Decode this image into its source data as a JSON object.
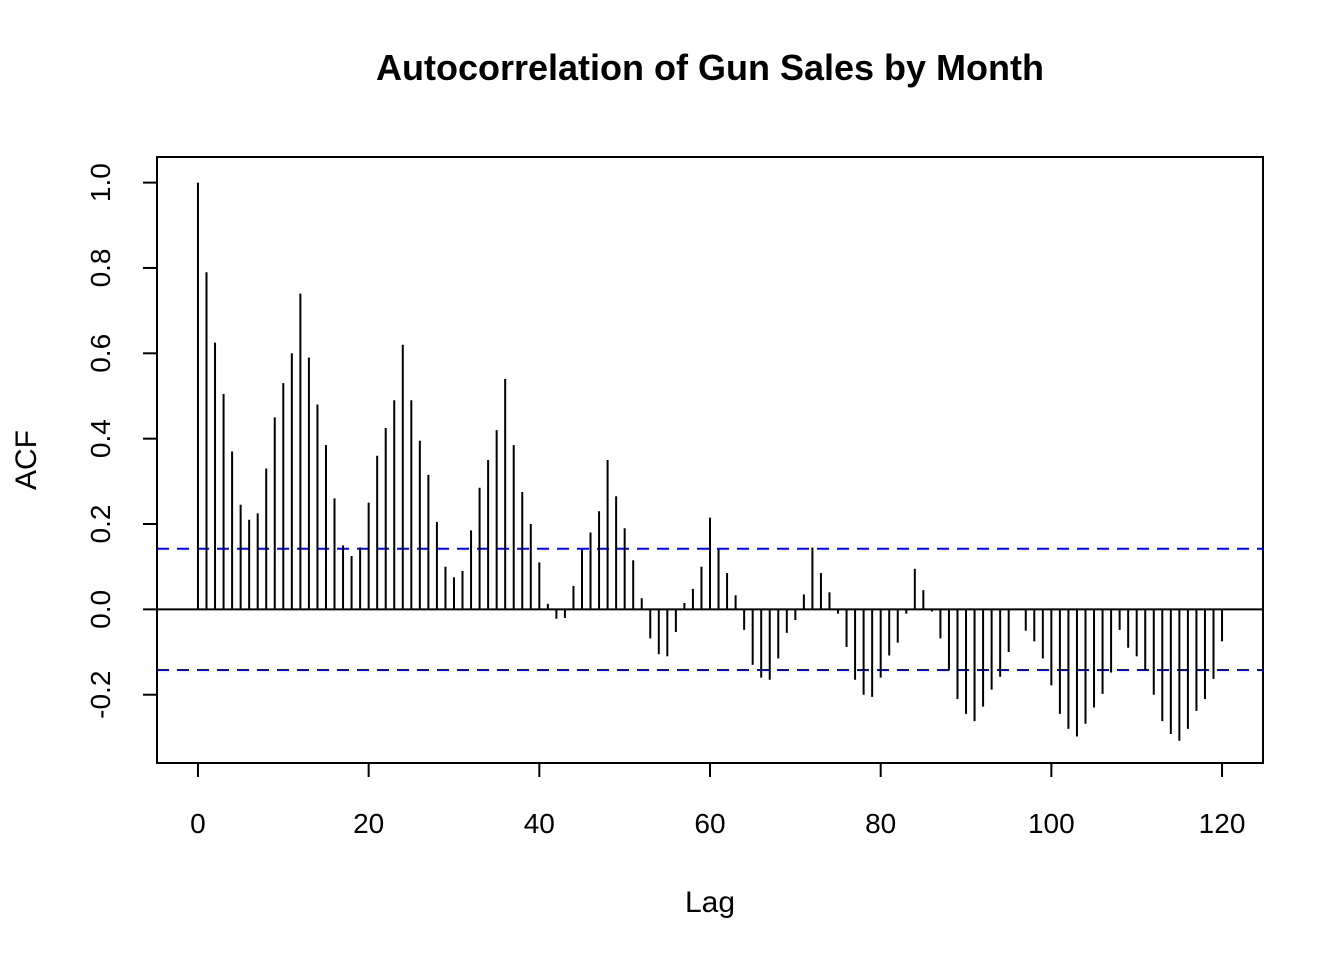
{
  "chart_data": {
    "type": "bar",
    "title": "Autocorrelation of Gun Sales by Month",
    "xlabel": "Lag",
    "ylabel": "ACF",
    "xlim": [
      -4.8,
      124.8
    ],
    "ylim": [
      -0.36,
      1.06
    ],
    "x_ticks": [
      0,
      20,
      40,
      60,
      80,
      100,
      120
    ],
    "y_ticks": [
      -0.2,
      0.0,
      0.2,
      0.4,
      0.6,
      0.8,
      1.0
    ],
    "x_tick_labels": [
      "0",
      "20",
      "40",
      "60",
      "80",
      "100",
      "120"
    ],
    "y_tick_labels": [
      "-0.2",
      "0.0",
      "0.2",
      "0.4",
      "0.6",
      "0.8",
      "1.0"
    ],
    "confidence_bound": 0.142,
    "grid": false,
    "colors": {
      "bars": "#000000",
      "confidence_lines": "#0000ff",
      "zero_line": "#000000"
    },
    "lags": [
      0,
      1,
      2,
      3,
      4,
      5,
      6,
      7,
      8,
      9,
      10,
      11,
      12,
      13,
      14,
      15,
      16,
      17,
      18,
      19,
      20,
      21,
      22,
      23,
      24,
      25,
      26,
      27,
      28,
      29,
      30,
      31,
      32,
      33,
      34,
      35,
      36,
      37,
      38,
      39,
      40,
      41,
      42,
      43,
      44,
      45,
      46,
      47,
      48,
      49,
      50,
      51,
      52,
      53,
      54,
      55,
      56,
      57,
      58,
      59,
      60,
      61,
      62,
      63,
      64,
      65,
      66,
      67,
      68,
      69,
      70,
      71,
      72,
      73,
      74,
      75,
      76,
      77,
      78,
      79,
      80,
      81,
      82,
      83,
      84,
      85,
      86,
      87,
      88,
      89,
      90,
      91,
      92,
      93,
      94,
      95,
      96,
      97,
      98,
      99,
      100,
      101,
      102,
      103,
      104,
      105,
      106,
      107,
      108,
      109,
      110,
      111,
      112,
      113,
      114,
      115,
      116,
      117,
      118,
      119,
      120
    ],
    "values": [
      1.0,
      0.79,
      0.625,
      0.505,
      0.37,
      0.245,
      0.21,
      0.225,
      0.33,
      0.45,
      0.53,
      0.6,
      0.74,
      0.59,
      0.48,
      0.385,
      0.26,
      0.15,
      0.125,
      0.145,
      0.25,
      0.36,
      0.425,
      0.49,
      0.62,
      0.49,
      0.395,
      0.315,
      0.205,
      0.1,
      0.075,
      0.09,
      0.185,
      0.285,
      0.35,
      0.42,
      0.54,
      0.385,
      0.275,
      0.2,
      0.11,
      0.013,
      -0.022,
      -0.02,
      0.055,
      0.14,
      0.18,
      0.23,
      0.35,
      0.265,
      0.19,
      0.115,
      0.026,
      -0.068,
      -0.105,
      -0.11,
      -0.053,
      0.015,
      0.048,
      0.1,
      0.215,
      0.14,
      0.085,
      0.033,
      -0.048,
      -0.13,
      -0.16,
      -0.165,
      -0.115,
      -0.055,
      -0.025,
      0.035,
      0.145,
      0.085,
      0.04,
      -0.01,
      -0.088,
      -0.165,
      -0.2,
      -0.205,
      -0.16,
      -0.108,
      -0.078,
      -0.01,
      0.095,
      0.045,
      -0.005,
      -0.068,
      -0.143,
      -0.21,
      -0.245,
      -0.262,
      -0.228,
      -0.188,
      -0.158,
      -0.1,
      0.0,
      -0.05,
      -0.075,
      -0.115,
      -0.178,
      -0.245,
      -0.28,
      -0.298,
      -0.268,
      -0.23,
      -0.198,
      -0.148,
      -0.048,
      -0.09,
      -0.11,
      -0.143,
      -0.2,
      -0.262,
      -0.292,
      -0.308,
      -0.28,
      -0.238,
      -0.21,
      -0.163,
      -0.075
    ]
  }
}
